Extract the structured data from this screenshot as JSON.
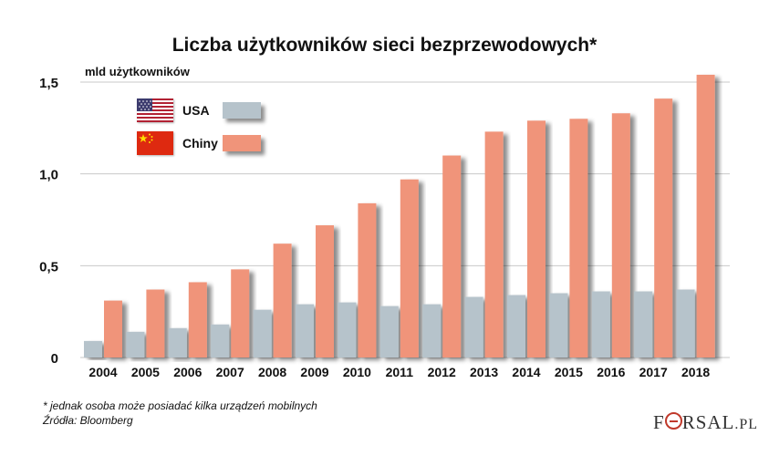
{
  "chart_data": {
    "type": "bar",
    "title": "Liczba użytkowników sieci bezprzewodowych*",
    "ylabel": "mld użytkowników",
    "xlabel": "",
    "categories": [
      "2004",
      "2005",
      "2006",
      "2007",
      "2008",
      "2009",
      "2010",
      "2011",
      "2012",
      "2013",
      "2014",
      "2015",
      "2016",
      "2017",
      "2018"
    ],
    "series": [
      {
        "name": "USA",
        "color": "#b6c3cb",
        "values": [
          0.09,
          0.14,
          0.16,
          0.18,
          0.26,
          0.29,
          0.3,
          0.28,
          0.29,
          0.33,
          0.34,
          0.35,
          0.36,
          0.36,
          0.37
        ]
      },
      {
        "name": "Chiny",
        "color": "#f0947a",
        "values": [
          0.31,
          0.37,
          0.41,
          0.48,
          0.62,
          0.72,
          0.84,
          0.97,
          1.1,
          1.23,
          1.29,
          1.3,
          1.33,
          1.41,
          1.54
        ]
      }
    ],
    "ylim": [
      0,
      1.5
    ],
    "yticks": [
      {
        "value": 0,
        "label": "0"
      },
      {
        "value": 0.5,
        "label": "0,5"
      },
      {
        "value": 1.0,
        "label": "1,0"
      },
      {
        "value": 1.5,
        "label": "1,5"
      }
    ],
    "grid": true,
    "legend": "top-left"
  },
  "legend": {
    "usa": {
      "label": "USA",
      "flag": "us-flag-icon"
    },
    "china": {
      "label": "Chiny",
      "flag": "china-flag-icon"
    }
  },
  "footnote": {
    "line1": "* jednak osoba może posiadać kilka urządzeń mobilnych",
    "line2": "Źródła: Bloomberg"
  },
  "logo": {
    "part1": "F",
    "part2": "RSAL",
    "part3": ".PL"
  }
}
